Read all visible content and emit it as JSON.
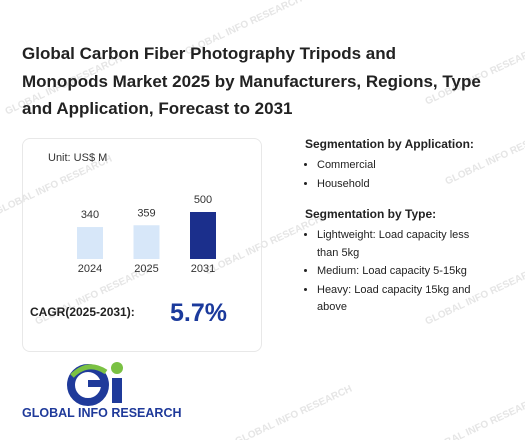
{
  "header": {
    "title": "Global Carbon Fiber Photography Tripods and Monopods Market 2025 by Manufacturers, Regions, Type and Application, Forecast to 2031"
  },
  "chart_data": {
    "type": "bar",
    "unit": "Unit: US$ M",
    "categories": [
      "2024",
      "2025",
      "2031"
    ],
    "values": [
      340,
      359,
      500
    ],
    "colors": [
      "#d7e7f9",
      "#d7e7f9",
      "#1b2f8c"
    ]
  },
  "cagr": {
    "label": "CAGR(2025-2031):",
    "value": "5.7%"
  },
  "segmentation": [
    {
      "title": "Segmentation by Application:",
      "items": [
        "Commercial",
        "Household"
      ]
    },
    {
      "title": "Segmentation by Type:",
      "items": [
        "Lightweight: Load capacity less than 5kg",
        "Medium: Load capacity 5-15kg",
        "Heavy: Load capacity 15kg and above"
      ]
    }
  ],
  "logo": {
    "text": "GLOBAL INFO RESEARCH"
  },
  "watermark": "GLOBAL INFO RESEARCH"
}
